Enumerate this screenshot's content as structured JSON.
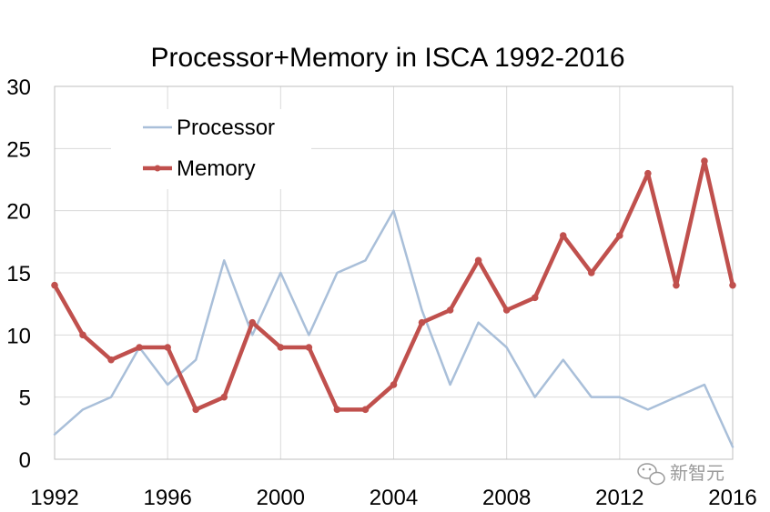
{
  "chart_data": {
    "type": "line",
    "title": "Processor+Memory in ISCA  1992-2016",
    "xlabel": "",
    "ylabel": "",
    "x": [
      1992,
      1993,
      1994,
      1995,
      1996,
      1997,
      1998,
      1999,
      2000,
      2001,
      2002,
      2003,
      2004,
      2005,
      2006,
      2007,
      2008,
      2009,
      2010,
      2011,
      2012,
      2013,
      2014,
      2015,
      2016
    ],
    "xlim": [
      1992,
      2016
    ],
    "ylim": [
      0,
      30
    ],
    "x_ticks": [
      "1992",
      "1996",
      "2000",
      "2004",
      "2008",
      "2012",
      "2016"
    ],
    "y_ticks": [
      "0",
      "5",
      "10",
      "15",
      "20",
      "25",
      "30"
    ],
    "grid": "horizontal",
    "legend_position": "top-left",
    "series": [
      {
        "name": "Processor",
        "color": "#a9bfd9",
        "markers": false,
        "values": [
          2,
          4,
          5,
          9,
          6,
          8,
          16,
          10,
          15,
          10,
          15,
          16,
          20,
          12,
          6,
          11,
          9,
          5,
          8,
          5,
          5,
          4,
          5,
          6,
          1
        ]
      },
      {
        "name": "Memory",
        "color": "#c0504d",
        "markers": true,
        "values": [
          14,
          10,
          8,
          9,
          9,
          4,
          5,
          11,
          9,
          9,
          4,
          4,
          6,
          11,
          12,
          16,
          12,
          13,
          18,
          15,
          18,
          23,
          14,
          24,
          14
        ]
      }
    ]
  },
  "watermark": {
    "text": "新智元",
    "icon": "wechat-icon"
  }
}
